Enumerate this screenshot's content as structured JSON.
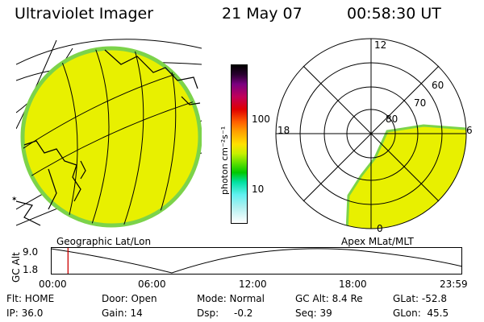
{
  "header": {
    "title": "Ultraviolet Imager",
    "date": "21 May 07",
    "time": "00:58:30 UT"
  },
  "colorbar": {
    "unit_label": "photon cm⁻²s⁻¹",
    "ticks": [
      "100",
      "10"
    ]
  },
  "geo_panel": {
    "label": "Geographic Lat/Lon"
  },
  "polar_panel": {
    "label": "Apex MLat/MLT",
    "mlt_labels": [
      "12",
      "18",
      "6",
      "0"
    ],
    "lat_labels": [
      "60",
      "70",
      "80"
    ]
  },
  "altitude_plot": {
    "ylabel": "GC Alt",
    "ymax": "9.0",
    "ymin": "1.8",
    "x_ticks": [
      "00:00",
      "06:00",
      "12:00",
      "18:00",
      "23:59"
    ],
    "marker_time_fraction": 0.04
  },
  "status": {
    "flt": "Flt: HOME",
    "door": "Door: Open",
    "mode": "Mode: Normal",
    "gc_alt": "GC Alt: 8.4 Re",
    "glat": "GLat: -52.8",
    "ip": "IP: 36.0",
    "gain": "Gain: 14",
    "dsp_label": "Dsp:",
    "dsp_value": "-0.2",
    "seq": "Seq: 39",
    "glon": "GLon:  45.5"
  },
  "colors": {
    "auroral_fill": "#e8f000",
    "auroral_rim": "#7cd34a",
    "marker": "#cc0000"
  }
}
